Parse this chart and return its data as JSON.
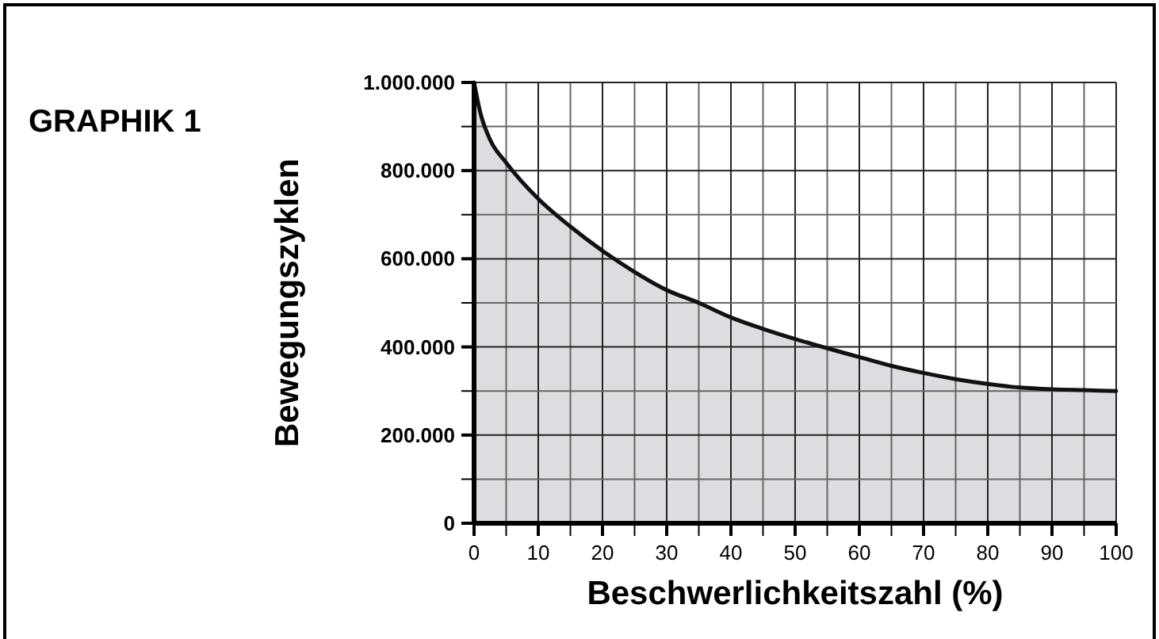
{
  "chart_data": {
    "type": "area",
    "title": "GRAPHIK 1",
    "xlabel": "Beschwerlichkeitszahl (%)",
    "ylabel": "Bewegungszyklen",
    "x": [
      0,
      1,
      2.5,
      5,
      10,
      15,
      20,
      25,
      30,
      35,
      40,
      45,
      50,
      55,
      60,
      65,
      70,
      75,
      80,
      85,
      90,
      95,
      100
    ],
    "series": [
      {
        "color": "#dcdde0",
        "values": [
          1000000,
          930000,
          870000,
          818000,
          736000,
          673000,
          618000,
          570000,
          529000,
          500000,
          467000,
          441000,
          418000,
          397000,
          377000,
          357000,
          341000,
          327000,
          316000,
          308000,
          304000,
          302000,
          300000
        ]
      }
    ],
    "xlim": [
      0,
      100
    ],
    "ylim": [
      0,
      1000000
    ],
    "xticks": [
      0,
      {
        "value": 5,
        "label": null
      },
      10,
      {
        "value": 15,
        "label": null
      },
      20,
      {
        "value": 25,
        "label": null
      },
      30,
      {
        "value": 35,
        "label": null
      },
      40,
      {
        "value": 45,
        "label": null
      },
      50,
      {
        "value": 55,
        "label": null
      },
      60,
      {
        "value": 65,
        "label": null
      },
      70,
      {
        "value": 75,
        "label": null
      },
      80,
      {
        "value": 85,
        "label": null
      },
      90,
      {
        "value": 95,
        "label": null
      },
      100
    ],
    "yticks": [
      {
        "value": 0,
        "label": "0"
      },
      {
        "value": 100000,
        "label": null
      },
      {
        "value": 200000,
        "label": "200.000"
      },
      {
        "value": 300000,
        "label": null
      },
      {
        "value": 400000,
        "label": "400.000"
      },
      {
        "value": 500000,
        "label": null
      },
      {
        "value": 600000,
        "label": "600.000"
      },
      {
        "value": 700000,
        "label": null
      },
      {
        "value": 800000,
        "label": "800.000"
      },
      {
        "value": 900000,
        "label": null
      },
      {
        "value": 1000000,
        "label": "1.000.000"
      }
    ],
    "grid": true
  }
}
